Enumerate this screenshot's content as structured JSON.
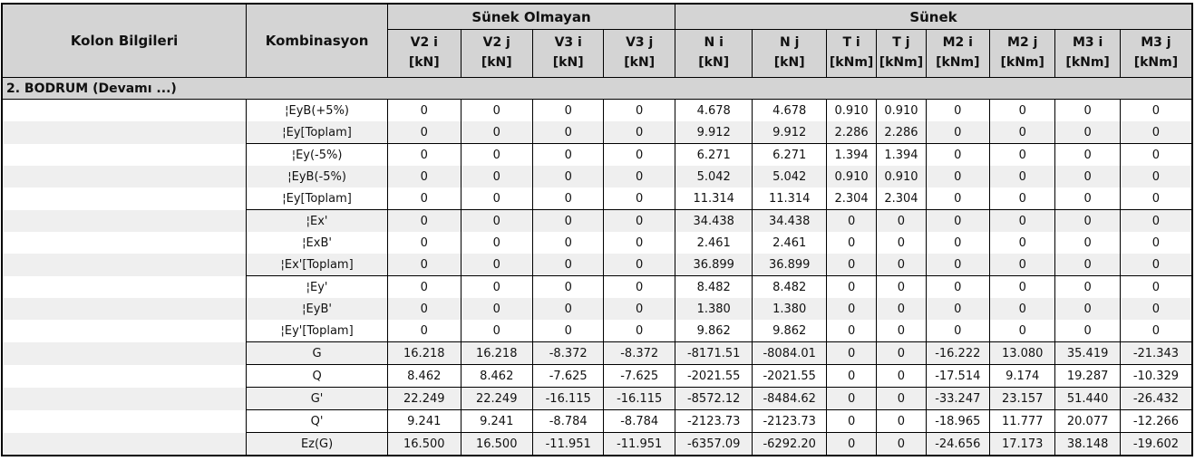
{
  "table": {
    "header": {
      "col1": "Kolon Bilgileri",
      "col2": "Kombinasyon",
      "group1": "Sünek Olmayan",
      "group2": "Sünek",
      "columns": [
        {
          "name": "V2 i",
          "unit": "[kN]"
        },
        {
          "name": "V2 j",
          "unit": "[kN]"
        },
        {
          "name": "V3 i",
          "unit": "[kN]"
        },
        {
          "name": "V3 j",
          "unit": "[kN]"
        },
        {
          "name": "N i",
          "unit": "[kN]"
        },
        {
          "name": "N j",
          "unit": "[kN]"
        },
        {
          "name": "T i",
          "unit": "[kNm]"
        },
        {
          "name": "T j",
          "unit": "[kNm]"
        },
        {
          "name": "M2 i",
          "unit": "[kNm]"
        },
        {
          "name": "M2 j",
          "unit": "[kNm]"
        },
        {
          "name": "M3 i",
          "unit": "[kNm]"
        },
        {
          "name": "M3 j",
          "unit": "[kNm]"
        }
      ]
    },
    "section": "2. BODRUM   (Devamı ...)",
    "rows": [
      {
        "label": "¦EyB(+5%)",
        "group_end": false,
        "values": [
          "0",
          "0",
          "0",
          "0",
          "4.678",
          "4.678",
          "0.910",
          "0.910",
          "0",
          "0",
          "0",
          "0"
        ]
      },
      {
        "label": "¦Ey[Toplam]",
        "group_end": true,
        "values": [
          "0",
          "0",
          "0",
          "0",
          "9.912",
          "9.912",
          "2.286",
          "2.286",
          "0",
          "0",
          "0",
          "0"
        ]
      },
      {
        "label": "¦Ey(-5%)",
        "group_end": false,
        "values": [
          "0",
          "0",
          "0",
          "0",
          "6.271",
          "6.271",
          "1.394",
          "1.394",
          "0",
          "0",
          "0",
          "0"
        ]
      },
      {
        "label": "¦EyB(-5%)",
        "group_end": false,
        "values": [
          "0",
          "0",
          "0",
          "0",
          "5.042",
          "5.042",
          "0.910",
          "0.910",
          "0",
          "0",
          "0",
          "0"
        ]
      },
      {
        "label": "¦Ey[Toplam]",
        "group_end": true,
        "values": [
          "0",
          "0",
          "0",
          "0",
          "11.314",
          "11.314",
          "2.304",
          "2.304",
          "0",
          "0",
          "0",
          "0"
        ]
      },
      {
        "label": "¦Ex'",
        "group_end": false,
        "values": [
          "0",
          "0",
          "0",
          "0",
          "34.438",
          "34.438",
          "0",
          "0",
          "0",
          "0",
          "0",
          "0"
        ]
      },
      {
        "label": "¦ExB'",
        "group_end": false,
        "values": [
          "0",
          "0",
          "0",
          "0",
          "2.461",
          "2.461",
          "0",
          "0",
          "0",
          "0",
          "0",
          "0"
        ]
      },
      {
        "label": "¦Ex'[Toplam]",
        "group_end": true,
        "values": [
          "0",
          "0",
          "0",
          "0",
          "36.899",
          "36.899",
          "0",
          "0",
          "0",
          "0",
          "0",
          "0"
        ]
      },
      {
        "label": "¦Ey'",
        "group_end": false,
        "values": [
          "0",
          "0",
          "0",
          "0",
          "8.482",
          "8.482",
          "0",
          "0",
          "0",
          "0",
          "0",
          "0"
        ]
      },
      {
        "label": "¦EyB'",
        "group_end": false,
        "values": [
          "0",
          "0",
          "0",
          "0",
          "1.380",
          "1.380",
          "0",
          "0",
          "0",
          "0",
          "0",
          "0"
        ]
      },
      {
        "label": "¦Ey'[Toplam]",
        "group_end": true,
        "values": [
          "0",
          "0",
          "0",
          "0",
          "9.862",
          "9.862",
          "0",
          "0",
          "0",
          "0",
          "0",
          "0"
        ]
      },
      {
        "label": "G",
        "group_end": true,
        "values": [
          "16.218",
          "16.218",
          "-8.372",
          "-8.372",
          "-8171.51",
          "-8084.01",
          "0",
          "0",
          "-16.222",
          "13.080",
          "35.419",
          "-21.343"
        ]
      },
      {
        "label": "Q",
        "group_end": true,
        "values": [
          "8.462",
          "8.462",
          "-7.625",
          "-7.625",
          "-2021.55",
          "-2021.55",
          "0",
          "0",
          "-17.514",
          "9.174",
          "19.287",
          "-10.329"
        ]
      },
      {
        "label": "G'",
        "group_end": true,
        "values": [
          "22.249",
          "22.249",
          "-16.115",
          "-16.115",
          "-8572.12",
          "-8484.62",
          "0",
          "0",
          "-33.247",
          "23.157",
          "51.440",
          "-26.432"
        ]
      },
      {
        "label": "Q'",
        "group_end": true,
        "values": [
          "9.241",
          "9.241",
          "-8.784",
          "-8.784",
          "-2123.73",
          "-2123.73",
          "0",
          "0",
          "-18.965",
          "11.777",
          "20.077",
          "-12.266"
        ]
      },
      {
        "label": "Ez(G)",
        "group_end": true,
        "values": [
          "16.500",
          "16.500",
          "-11.951",
          "-11.951",
          "-6357.09",
          "-6292.20",
          "0",
          "0",
          "-24.656",
          "17.173",
          "38.148",
          "-19.602"
        ]
      }
    ],
    "colors": {
      "header_bg": "#d4d4d4",
      "section_bg": "#d4d4d4",
      "row_alt_bg": "#efefef",
      "row_bg": "#ffffff",
      "border": "#000000"
    }
  }
}
